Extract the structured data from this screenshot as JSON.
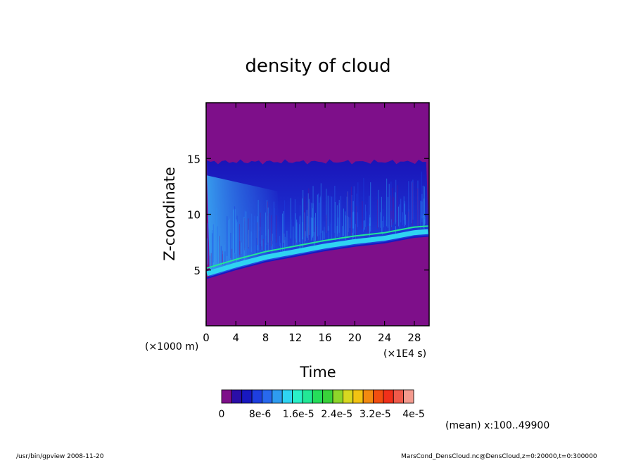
{
  "chart_data": {
    "type": "heatmap",
    "title": "density of cloud",
    "xlabel": "Time",
    "ylabel": "Z-coordinate",
    "x_unit": "(×1E4 s)",
    "y_unit": "(×1000 m)",
    "xlim": [
      0,
      30
    ],
    "ylim": [
      0,
      20
    ],
    "x_ticks": [
      "0",
      "4",
      "8",
      "12",
      "16",
      "20",
      "24",
      "28"
    ],
    "y_ticks": [
      "5",
      "10",
      "15"
    ],
    "z_range": [
      0,
      4e-05
    ],
    "colorbar": {
      "tick_labels": [
        "0",
        "8e-6",
        "1.6e-5",
        "2.4e-5",
        "3.2e-5",
        "4e-5"
      ],
      "colors": [
        "#7e0f8a",
        "#2a0ea8",
        "#1818c0",
        "#1e3fe0",
        "#2869ee",
        "#2e9cf0",
        "#2fd4f2",
        "#2af0c8",
        "#22e896",
        "#25de5a",
        "#39d23a",
        "#8ed62a",
        "#d8d820",
        "#f2c312",
        "#f28a10",
        "#f24e10",
        "#f0301a",
        "#f05a4a",
        "#f49a8e"
      ]
    },
    "description": {
      "background_level": 0,
      "cloud_top_km": 14.7,
      "cloud_base_km": [
        [
          0,
          4.2
        ],
        [
          4,
          5.0
        ],
        [
          8,
          5.7
        ],
        [
          12,
          6.2
        ],
        [
          16,
          6.7
        ],
        [
          20,
          7.1
        ],
        [
          24,
          7.4
        ],
        [
          28,
          7.9
        ],
        [
          30,
          8.0
        ]
      ]
    },
    "note": "(mean) x:100..49900"
  },
  "footer": {
    "left": "/usr/bin/gpview   2008-11-20",
    "right": "MarsCond_DensCloud.nc@DensCloud,z=0:20000,t=0:300000"
  }
}
